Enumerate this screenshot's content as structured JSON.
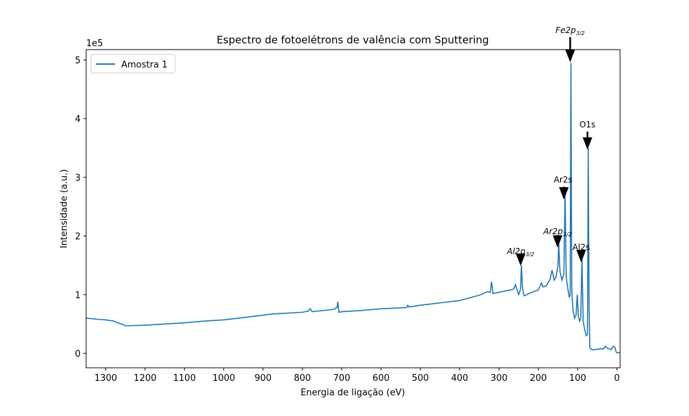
{
  "chart_data": {
    "type": "line",
    "title": "Espectro de fotoelétrons de valência com Sputtering",
    "xlabel": "Energia de ligação (eV)",
    "ylabel": "Intensidade (a.u.)",
    "y_offset_label": "1e5",
    "xlim": [
      1350,
      -8
    ],
    "ylim": [
      -24600,
      517600
    ],
    "xticks": [
      1300,
      1200,
      1100,
      1000,
      900,
      800,
      700,
      600,
      500,
      400,
      300,
      200,
      100,
      0
    ],
    "yticks": [
      {
        "value": 0,
        "label": "0"
      },
      {
        "value": 100000,
        "label": "1"
      },
      {
        "value": 200000,
        "label": "2"
      },
      {
        "value": 300000,
        "label": "3"
      },
      {
        "value": 400000,
        "label": "4"
      },
      {
        "value": 500000,
        "label": "5"
      }
    ],
    "legend": "upper left",
    "x": [
      1350,
      1320,
      1300,
      1280,
      1270,
      1260,
      1250,
      1200,
      1150,
      1100,
      1050,
      1000,
      950,
      900,
      880,
      850,
      800,
      785,
      780,
      775,
      720,
      712,
      710,
      707,
      700,
      650,
      600,
      535,
      532,
      529,
      500,
      450,
      400,
      350,
      330,
      322,
      319,
      315,
      300,
      280,
      270,
      262,
      258,
      250,
      245,
      243,
      240,
      236,
      220,
      200,
      192,
      188,
      180,
      170,
      165,
      160,
      155,
      150,
      148,
      145,
      140,
      135,
      132,
      129,
      125,
      121,
      119,
      117,
      115,
      112,
      108,
      104,
      101,
      98,
      95,
      92,
      89,
      86,
      82,
      78,
      75,
      73,
      71,
      69,
      66,
      60,
      50,
      40,
      35,
      30,
      25,
      20,
      15,
      10,
      5,
      2,
      0,
      -8
    ],
    "series": [
      {
        "name": "Amostra 1",
        "color": "#1f77b4",
        "values": [
          60000,
          58000,
          57000,
          55000,
          52000,
          50000,
          47000,
          48000,
          50000,
          52000,
          55000,
          57000,
          61000,
          65000,
          67000,
          68000,
          70000,
          72000,
          76000,
          71000,
          75000,
          78000,
          88000,
          70000,
          71000,
          73000,
          76000,
          78000,
          82000,
          79000,
          82000,
          86000,
          90000,
          99000,
          105000,
          104000,
          122000,
          102000,
          104000,
          107000,
          108000,
          110000,
          117000,
          100000,
          110000,
          150000,
          110000,
          98000,
          103000,
          108000,
          120000,
          113000,
          115000,
          126000,
          142000,
          125000,
          130000,
          150000,
          188000,
          140000,
          125000,
          135000,
          272000,
          130000,
          110000,
          95000,
          100000,
          495000,
          110000,
          75000,
          60000,
          65000,
          100000,
          62000,
          55000,
          60000,
          165000,
          55000,
          40000,
          30000,
          32000,
          350000,
          90000,
          10000,
          7000,
          6000,
          7000,
          8000,
          7000,
          12000,
          9000,
          8000,
          6000,
          12000,
          10000,
          2000,
          1000,
          1000
        ]
      }
    ],
    "annotations": [
      {
        "text": "Fe2p",
        "subscript": "3/2",
        "xy": [
          119,
          496000
        ],
        "xytext": [
          119,
          546000
        ]
      },
      {
        "text": "O1s",
        "xy": [
          75,
          347000
        ],
        "xytext": [
          75,
          385000
        ]
      },
      {
        "text": "Ar2s",
        "xy": [
          135,
          262000
        ],
        "xytext": [
          137,
          291000
        ]
      },
      {
        "text": "Ar2p",
        "subscript": "3/2",
        "xy": [
          151,
          180000
        ],
        "xytext": [
          151,
          203000
        ]
      },
      {
        "text": "Al2s",
        "xy": [
          91,
          155000
        ],
        "xytext": [
          91,
          176000
        ]
      },
      {
        "text": "Al2p",
        "subscript": "3/2",
        "xy": [
          245,
          149000
        ],
        "xytext": [
          245,
          169000
        ]
      }
    ]
  }
}
